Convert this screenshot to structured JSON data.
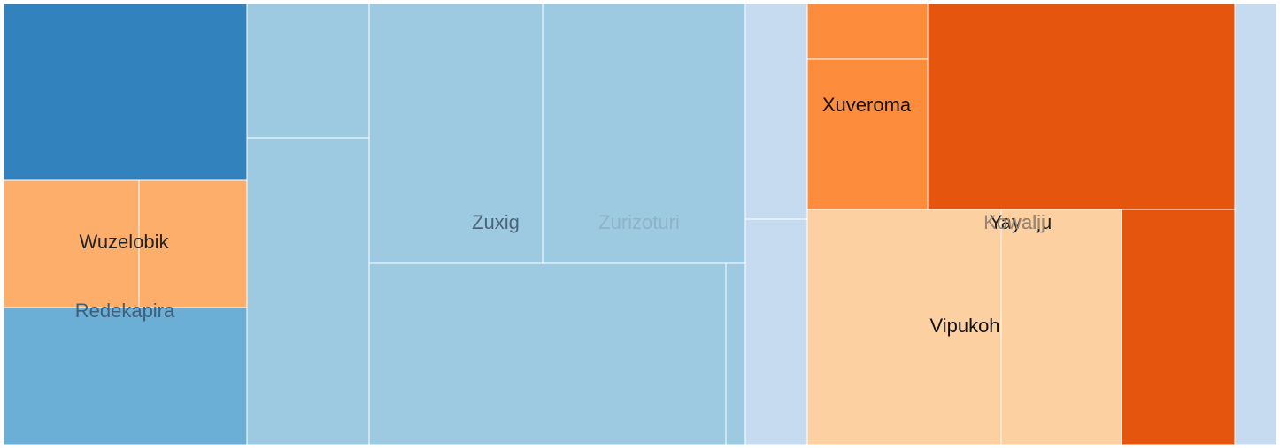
{
  "chart_data": {
    "type": "treemap",
    "title": "",
    "groups": [
      {
        "name": "Redekapira",
        "label_color": "#3f5f78",
        "children": [
          {
            "name": "",
            "value": 12.6,
            "color": "#3182bd"
          },
          {
            "name": "",
            "value": 10.4,
            "color": "#6baed6"
          }
        ]
      },
      {
        "name": "Wuzelobik",
        "label_color": "#222222",
        "children": [
          {
            "name": "",
            "value": 5.1,
            "color": "#fdae6b"
          },
          {
            "name": "",
            "value": 4.0,
            "color": "#fdae6b"
          }
        ]
      },
      {
        "name": "Zuxig",
        "label_color": "#4c6576",
        "children": [
          {
            "name": "",
            "value": 4.7,
            "color": "#9ecae1"
          },
          {
            "name": "",
            "value": 9.3,
            "color": "#9ecae1"
          },
          {
            "name": "",
            "value": 13.0,
            "color": "#9ecae1"
          },
          {
            "name": "",
            "value": 18.2,
            "color": "#9ecae1"
          },
          {
            "name": "",
            "value": 1.0,
            "color": "#9ecae1"
          }
        ]
      },
      {
        "name": "Zurizoturi",
        "label_color": "#8fb2c9",
        "children": [
          {
            "name": "",
            "value": 15.2,
            "color": "#9ecae1"
          }
        ]
      },
      {
        "name": "",
        "children": [
          {
            "name": "",
            "value": 3.8,
            "color": "#c6dbef"
          },
          {
            "name": "",
            "value": 4.1,
            "color": "#c6dbef"
          }
        ]
      },
      {
        "name": "Xuveroma",
        "label_color": "#111111",
        "children": [
          {
            "name": "",
            "value": 1.9,
            "color": "#fd8d3c"
          },
          {
            "name": "",
            "value": 4.1,
            "color": "#fd8d3c"
          }
        ]
      },
      {
        "name": "Yayalju",
        "label_color": "#222222",
        "children": [
          {
            "name": "",
            "value": 18.5,
            "color": "#e6550d"
          },
          {
            "name": "",
            "value": 7.6,
            "color": "#e6550d"
          }
        ]
      },
      {
        "name": "Vipukoh",
        "label_color": "#111111",
        "children": [
          {
            "name": "",
            "value": 13.2,
            "color": "#fdd0a2"
          },
          {
            "name": "",
            "value": 8.2,
            "color": "#fdd0a2"
          }
        ]
      },
      {
        "name": "Kowalij",
        "label_color": "#9a8676",
        "children": []
      },
      {
        "name": "",
        "children": [
          {
            "name": "",
            "value": 5.5,
            "color": "#c6dbef"
          }
        ]
      }
    ]
  }
}
